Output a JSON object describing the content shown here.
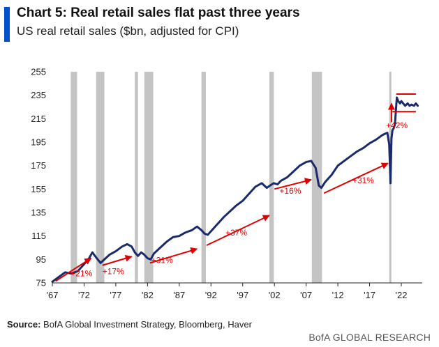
{
  "header": {
    "title": "Chart 5: Real retail sales flat past three years",
    "subtitle": "US real retail sales ($bn, adjusted for CPI)"
  },
  "footer": {
    "source_label": "Source:",
    "source_text": " BofA Global Investment Strategy, Bloomberg, Haver",
    "brand_a": "BofA",
    "brand_b": " GLOBAL RESEARCH"
  },
  "colors": {
    "line": "#1a2a6c",
    "recession": "#c4c4c4",
    "annotation": "#e00000",
    "accent": "#0052cc"
  },
  "chart_data": {
    "type": "line",
    "title": "Chart 5: Real retail sales flat past three years",
    "ylabel": "",
    "ylim": [
      75,
      255
    ],
    "yticks": [
      75,
      95,
      115,
      135,
      155,
      175,
      195,
      215,
      235,
      255
    ],
    "xlim": [
      1967,
      2025.3
    ],
    "xticks": [
      {
        "v": 1967,
        "label": "'67"
      },
      {
        "v": 1972,
        "label": "'72"
      },
      {
        "v": 1977,
        "label": "'77"
      },
      {
        "v": 1982,
        "label": "'82"
      },
      {
        "v": 1987,
        "label": "'87"
      },
      {
        "v": 1992,
        "label": "'92"
      },
      {
        "v": 1997,
        "label": "'97"
      },
      {
        "v": 2002,
        "label": "'02"
      },
      {
        "v": 2007,
        "label": "'07"
      },
      {
        "v": 2012,
        "label": "'12"
      },
      {
        "v": 2017,
        "label": "'17"
      },
      {
        "v": 2022,
        "label": "'22"
      }
    ],
    "recessions": [
      [
        1969.9,
        1970.9
      ],
      [
        1973.9,
        1975.2
      ],
      [
        1980.0,
        1980.5
      ],
      [
        1981.5,
        1982.9
      ],
      [
        1990.5,
        1991.2
      ],
      [
        2001.2,
        2001.9
      ],
      [
        2007.9,
        2009.5
      ],
      [
        2020.1,
        2020.4
      ]
    ],
    "series": [
      {
        "x": [
          1967.0,
          1968.0,
          1969.0,
          1970.0,
          1971.0,
          1972.0,
          1972.8,
          1973.3,
          1974.0,
          1974.6,
          1975.0,
          1976.0,
          1977.0,
          1978.0,
          1978.8,
          1979.5,
          1980.0,
          1980.5,
          1981.0,
          1981.5,
          1982.0,
          1982.5,
          1983.0,
          1984.0,
          1985.0,
          1986.0,
          1987.0,
          1988.0,
          1989.0,
          1989.8,
          1990.5,
          1991.0,
          1991.5,
          1992.0,
          1993.0,
          1994.0,
          1995.0,
          1996.0,
          1997.0,
          1998.0,
          1999.0,
          2000.0,
          2000.8,
          2001.3,
          2001.9,
          2002.5,
          2003.0,
          2004.0,
          2005.0,
          2006.0,
          2007.0,
          2007.8,
          2008.5,
          2009.0,
          2009.4,
          2010.0,
          2011.0,
          2012.0,
          2013.0,
          2014.0,
          2015.0,
          2016.0,
          2017.0,
          2018.0,
          2019.0,
          2019.8,
          2020.1,
          2020.3,
          2020.45,
          2020.6,
          2020.8,
          2021.0,
          2021.2,
          2021.3,
          2021.5,
          2021.8,
          2022.0,
          2022.3,
          2022.6,
          2023.0,
          2023.3,
          2023.6,
          2024.0,
          2024.3,
          2024.6
        ],
        "values": [
          76,
          80,
          84,
          83,
          85,
          91,
          96,
          101,
          96,
          92,
          94,
          99,
          102,
          106,
          108,
          106,
          101,
          98,
          101,
          99,
          96,
          95,
          100,
          105,
          110,
          114,
          115,
          118,
          120,
          123,
          120,
          117,
          116,
          119,
          125,
          131,
          136,
          141,
          145,
          151,
          157,
          160,
          156,
          158,
          160,
          159,
          162,
          165,
          170,
          175,
          178,
          179,
          173,
          158,
          156,
          161,
          167,
          175,
          179,
          183,
          187,
          190,
          194,
          197,
          201,
          203,
          193,
          160,
          198,
          205,
          207,
          210,
          226,
          233,
          230,
          228,
          230,
          228,
          226,
          228,
          226,
          227,
          226,
          228,
          226
        ]
      }
    ],
    "annotations": [
      {
        "label": "+21%",
        "x1": 1967.5,
        "y1": 76.5,
        "x2": 1973.1,
        "y2": 96,
        "tx": 1971.6,
        "ty": 80.5
      },
      {
        "label": "+17%",
        "x1": 1974.9,
        "y1": 90,
        "x2": 1979.5,
        "y2": 97.5,
        "tx": 1976.6,
        "ty": 82.5
      },
      {
        "label": "+31%",
        "x1": 1982.4,
        "y1": 92,
        "x2": 1989.8,
        "y2": 104,
        "tx": 1984.3,
        "ty": 92
      },
      {
        "label": "+37%",
        "x1": 1991.3,
        "y1": 107,
        "x2": 2001.2,
        "y2": 132.5,
        "tx": 1996.0,
        "ty": 115.5
      },
      {
        "label": "+16%",
        "x1": 2002.0,
        "y1": 155,
        "x2": 2007.8,
        "y2": 163,
        "tx": 2004.5,
        "ty": 151
      },
      {
        "label": "+31%",
        "x1": 2009.8,
        "y1": 151.5,
        "x2": 2019.9,
        "y2": 177,
        "tx": 2016.0,
        "ty": 160
      },
      {
        "label": "+42%",
        "x1": 2020.45,
        "y1": 212,
        "x2": 2020.45,
        "y2": 228,
        "tx": 2021.3,
        "ty": 207
      }
    ],
    "range_band": {
      "top": 236,
      "bottom": 221,
      "x_start": 2020.6,
      "x_end": 2024.3
    }
  }
}
